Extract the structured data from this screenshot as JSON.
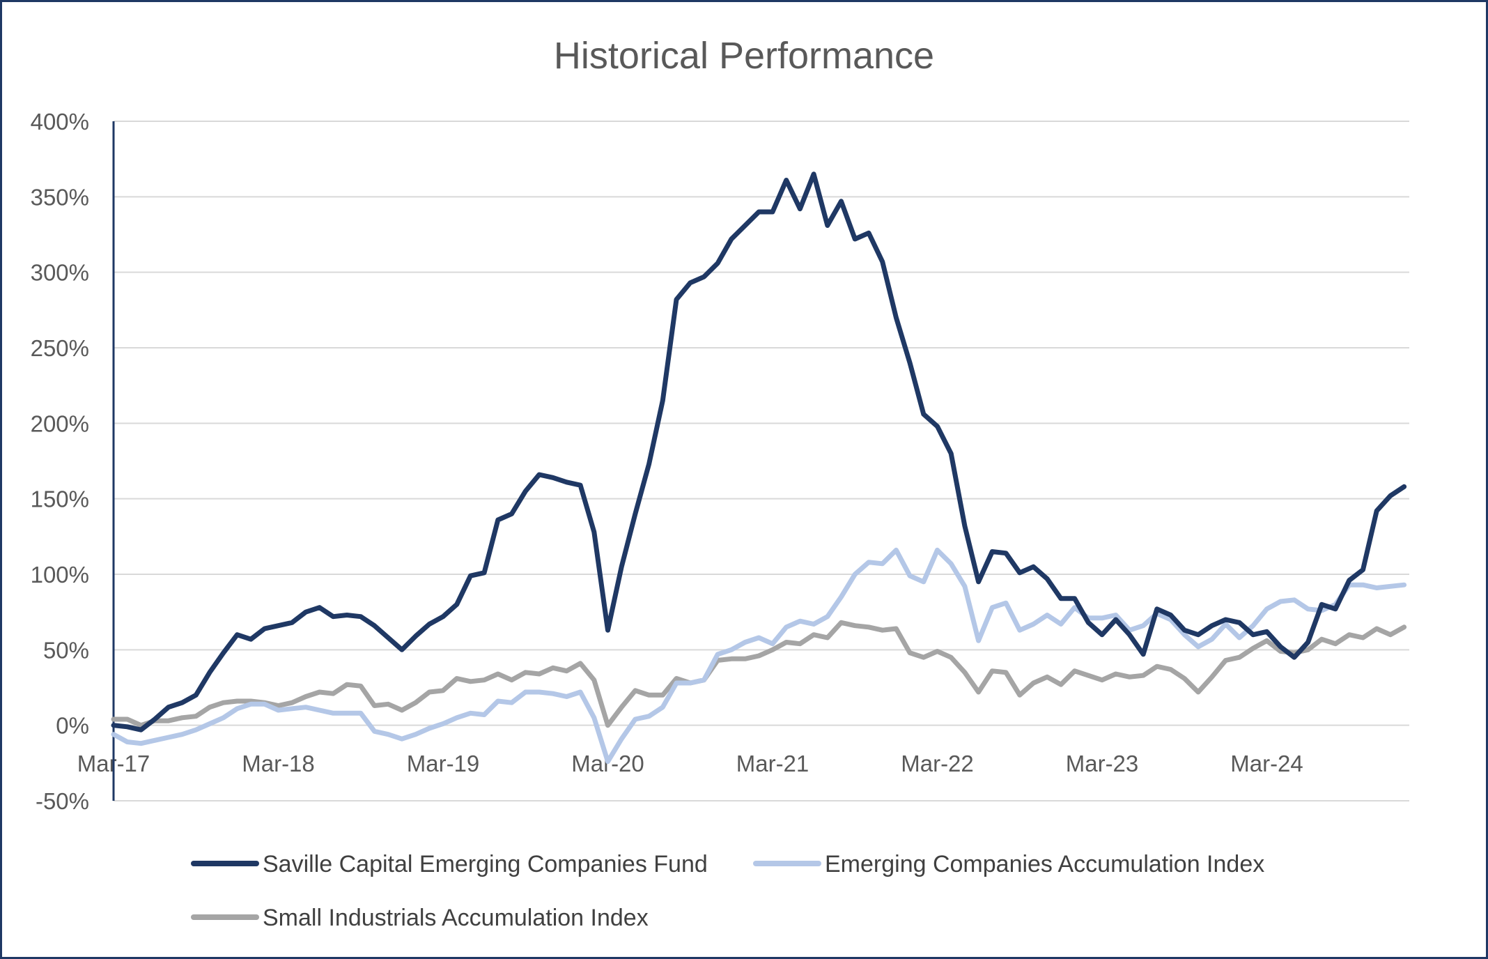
{
  "chart_data": {
    "type": "line",
    "title": "Historical Performance",
    "xlabel": "",
    "ylabel": "",
    "x_ticks": [
      "Mar-17",
      "Mar-18",
      "Mar-19",
      "Mar-20",
      "Mar-21",
      "Mar-22",
      "Mar-23",
      "Mar-24"
    ],
    "y_ticks": [
      "400%",
      "350%",
      "300%",
      "250%",
      "200%",
      "150%",
      "100%",
      "50%",
      "0%",
      "-50%"
    ],
    "ylim": [
      -50,
      400
    ],
    "y_unit": "%",
    "grid": true,
    "legend_position": "bottom",
    "x_start": "Mar-17",
    "x_end": "Feb-25",
    "series": [
      {
        "name": "Saville Capital Emerging Companies Fund",
        "color": "#1f3864",
        "values": [
          0,
          -1,
          -3,
          4,
          12,
          15,
          20,
          35,
          48,
          60,
          57,
          64,
          66,
          68,
          75,
          78,
          72,
          73,
          72,
          66,
          58,
          50,
          59,
          67,
          72,
          80,
          99,
          101,
          136,
          140,
          155,
          166,
          164,
          161,
          159,
          128,
          63,
          105,
          140,
          173,
          215,
          282,
          293,
          297,
          306,
          322,
          331,
          340,
          340,
          361,
          342,
          365,
          331,
          347,
          322,
          326,
          307,
          270,
          240,
          206,
          198,
          180,
          132,
          95,
          115,
          114,
          101,
          105,
          97,
          84,
          84,
          68,
          60,
          70,
          60,
          47,
          77,
          73,
          63,
          60,
          66,
          70,
          68,
          60,
          62,
          52,
          45,
          55,
          80,
          77,
          96,
          103,
          142,
          152,
          158
        ]
      },
      {
        "name": "Emerging Companies Accumulation Index",
        "color": "#b4c7e7",
        "values": [
          -6,
          -11,
          -12,
          -10,
          -8,
          -6,
          -3,
          1,
          5,
          11,
          14,
          14,
          10,
          11,
          12,
          10,
          8,
          8,
          8,
          -4,
          -6,
          -9,
          -6,
          -2,
          1,
          5,
          8,
          7,
          16,
          15,
          22,
          22,
          21,
          19,
          22,
          5,
          -24,
          -9,
          4,
          6,
          12,
          28,
          28,
          30,
          47,
          50,
          55,
          58,
          54,
          65,
          69,
          67,
          72,
          85,
          100,
          108,
          107,
          116,
          99,
          95,
          116,
          107,
          92,
          56,
          78,
          81,
          63,
          67,
          73,
          67,
          78,
          71,
          71,
          73,
          63,
          66,
          74,
          70,
          60,
          52,
          57,
          67,
          58,
          66,
          77,
          82,
          83,
          77,
          76,
          80,
          93,
          93,
          91,
          92,
          93
        ]
      },
      {
        "name": "Small Industrials Accumulation Index",
        "color": "#a5a5a5",
        "values": [
          4,
          4,
          0,
          3,
          3,
          5,
          6,
          12,
          15,
          16,
          16,
          15,
          13,
          15,
          19,
          22,
          21,
          27,
          26,
          13,
          14,
          10,
          15,
          22,
          23,
          31,
          29,
          30,
          34,
          30,
          35,
          34,
          38,
          36,
          41,
          30,
          0,
          12,
          23,
          20,
          20,
          31,
          28,
          30,
          43,
          44,
          44,
          46,
          50,
          55,
          54,
          60,
          58,
          68,
          66,
          65,
          63,
          64,
          48,
          45,
          49,
          45,
          35,
          22,
          36,
          35,
          20,
          28,
          32,
          27,
          36,
          33,
          30,
          34,
          32,
          33,
          39,
          37,
          31,
          22,
          32,
          43,
          45,
          51,
          56,
          49,
          48,
          50,
          57,
          54,
          60,
          58,
          64,
          60,
          65
        ]
      }
    ]
  }
}
